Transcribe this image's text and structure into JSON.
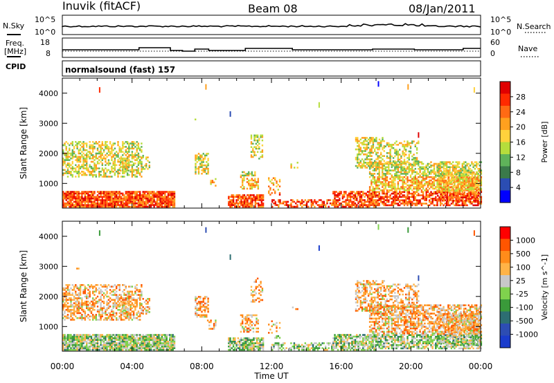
{
  "header": {
    "station": "Inuvik (fitACF)",
    "beam": "Beam 08",
    "date": "08/Jan/2011"
  },
  "labels": {
    "nsky": "N.Sky",
    "nsearch": "N.Search",
    "freq": "Freq.",
    "mhz": "[MHz]",
    "nave": "Nave",
    "cpid": "CPID",
    "cpid_value": "normalsound (fast) 157",
    "xlabel": "Time UT",
    "ylabel": "Slant Range [km]"
  },
  "colors": {
    "power": [
      "#0000ff",
      "#2b4db3",
      "#3a7a4a",
      "#5fb35a",
      "#b6dd3c",
      "#ffd23c",
      "#ffa01e",
      "#ff6a14",
      "#ff2a00",
      "#e00000"
    ],
    "velocity": [
      "#ff0000",
      "#ff5500",
      "#ff8c1a",
      "#ffb347",
      "#c8c8c8",
      "#7fd24d",
      "#3a9a3a",
      "#2d6e72",
      "#2d4db3",
      "#1a3ccc"
    ]
  },
  "chart_data": [
    {
      "type": "line",
      "name": "noise-panel",
      "x_ticks": [
        "00:00",
        "04:00",
        "08:00",
        "12:00",
        "16:00",
        "20:00",
        "00:00"
      ],
      "left_ticks": [
        "10^5",
        "10^0"
      ],
      "right_ticks": [
        "10^5",
        "10^0"
      ],
      "left_label": "N.Sky",
      "right_label": "N.Search"
    },
    {
      "type": "line",
      "name": "freq-panel",
      "left_ticks": [
        "18",
        "8"
      ],
      "right_ticks": [
        "60",
        "0"
      ],
      "left_label": "Freq. [MHz]",
      "right_label": "Nave"
    },
    {
      "type": "heatmap",
      "name": "power-panel",
      "title": "Power [dB]",
      "x_ticks": [
        "00:00",
        "04:00",
        "08:00",
        "12:00",
        "16:00",
        "20:00",
        "00:00"
      ],
      "y_ticks": [
        1000,
        2000,
        3000,
        4000
      ],
      "ylabel": "Slant Range [km]",
      "colorbar_ticks": [
        "4",
        "8",
        "12",
        "16",
        "20",
        "24",
        "28"
      ],
      "colorbar_label": "Power [dB]"
    },
    {
      "type": "heatmap",
      "name": "velocity-panel",
      "title": "Velocity [m s^-1]",
      "x_ticks": [
        "00:00",
        "04:00",
        "08:00",
        "12:00",
        "16:00",
        "20:00",
        "00:00"
      ],
      "y_ticks": [
        1000,
        2000,
        3000,
        4000
      ],
      "ylabel": "Slant Range [km]",
      "xlabel": "Time UT",
      "colorbar_ticks": [
        "1000",
        "500",
        "100",
        "25",
        "-25",
        "-100",
        "-500",
        "-1000"
      ],
      "colorbar_label": "Velocity [m s^-1]"
    }
  ]
}
